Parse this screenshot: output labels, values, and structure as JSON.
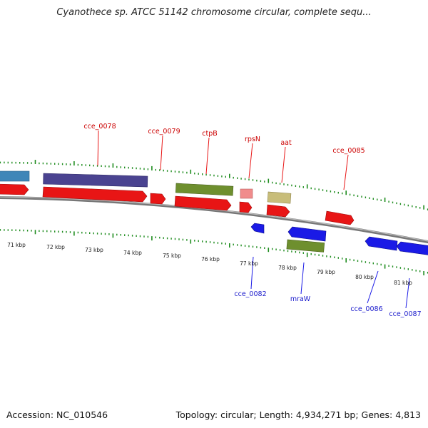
{
  "title": "Cyanothece sp. ATCC 51142 chromosome circular, complete sequ...",
  "accession": "Accession: NC_010546",
  "topology": "Topology: circular; Length: 4,934,271 bp; Genes: 4,813",
  "scale_labels": [
    "71 kbp",
    "72 kbp",
    "73 kbp",
    "74 kbp",
    "75 kbp",
    "76 kbp",
    "77 kbp",
    "78 kbp",
    "79 kbp",
    "80 kbp",
    "81 kbp"
  ],
  "gene_labels_top": [
    "cce_0078",
    "cce_0079",
    "ctpB",
    "rpsN",
    "aat",
    "cce_0085"
  ],
  "gene_labels_bottom": [
    "cce_0082",
    "mraW",
    "cce_0086",
    "cce_0087"
  ],
  "colors": {
    "forward_gene": "#e81515",
    "reverse_gene": "#1a1ae6",
    "forward_label": "#cc0000",
    "reverse_label": "#1a1acc",
    "tick": "#1e8c1e",
    "backbone": "#888888",
    "olive_feature": "#6e8f2e",
    "purple_feature": "#4a4390",
    "steelblue_feature": "#3f86b8",
    "khaki_feature": "#c8bd7a",
    "pink_feature": "#f08c8c"
  }
}
